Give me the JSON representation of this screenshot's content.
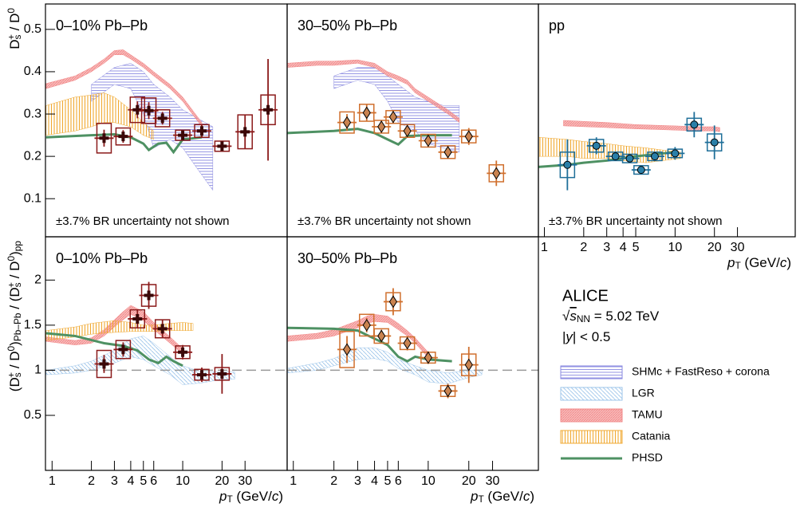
{
  "chart_data": [
    {
      "type": "scatter",
      "title": "0–10% Pb–Pb",
      "note": "±3.7% BR uncertainty not shown",
      "xscale": "log",
      "xlim": [
        0.89,
        63
      ],
      "ylim": [
        0.01,
        0.56
      ],
      "yticks": [
        0.1,
        0.2,
        0.3,
        0.4,
        0.5
      ],
      "y_label": [
        {
          "t": "D"
        },
        {
          "t": "s",
          "sub": true
        },
        {
          "t": "+",
          "sup": true
        },
        {
          "t": " / D"
        },
        {
          "t": "0",
          "sup": true
        }
      ],
      "color": "#8b1a1a",
      "marker": "cross",
      "marker_color": "#3b0808",
      "x": [
        2.5,
        3.5,
        4.5,
        5.5,
        7,
        10,
        14,
        20,
        30,
        45
      ],
      "values": [
        0.243,
        0.247,
        0.31,
        0.308,
        0.29,
        0.25,
        0.26,
        0.224,
        0.258,
        0.31
      ],
      "errors": [
        0.02,
        0.015,
        0.02,
        0.02,
        0.015,
        0.012,
        0.015,
        0.012,
        0.04,
        0.12
      ],
      "sys_errors": [
        0.035,
        0.02,
        0.03,
        0.03,
        0.02,
        0.012,
        0.015,
        0.012,
        0.04,
        0.035
      ],
      "models": {
        "SHMc + FastReso + corona": {
          "x": [
            2,
            3,
            4,
            5,
            6,
            8,
            10,
            13,
            17
          ],
          "lo": [
            0.33,
            0.37,
            0.36,
            0.3,
            0.22,
            0.24,
            0.22,
            0.17,
            0.12
          ],
          "hi": [
            0.37,
            0.41,
            0.42,
            0.4,
            0.37,
            0.34,
            0.31,
            0.29,
            0.27
          ]
        },
        "TAMU": {
          "x": [
            0.9,
            1.5,
            2,
            2.5,
            3,
            3.5,
            4,
            5,
            6,
            8,
            10,
            14
          ],
          "lo": [
            0.36,
            0.38,
            0.4,
            0.42,
            0.44,
            0.44,
            0.43,
            0.41,
            0.39,
            0.36,
            0.33,
            0.27
          ],
          "hi": [
            0.372,
            0.39,
            0.41,
            0.43,
            0.45,
            0.452,
            0.44,
            0.42,
            0.4,
            0.37,
            0.34,
            0.28
          ]
        },
        "Catania": {
          "x": [
            0.9,
            1.5,
            2,
            2.5,
            3,
            4,
            5,
            6
          ],
          "lo": [
            0.25,
            0.26,
            0.27,
            0.28,
            0.28,
            0.27,
            0.25,
            0.24
          ],
          "hi": [
            0.32,
            0.34,
            0.345,
            0.35,
            0.34,
            0.31,
            0.28,
            0.26
          ]
        },
        "PHSD": {
          "x": [
            0.9,
            2,
            3,
            4,
            5,
            5.5,
            6.5,
            7.5,
            8.5,
            10,
            14
          ],
          "values": [
            0.245,
            0.25,
            0.252,
            0.245,
            0.23,
            0.215,
            0.23,
            0.232,
            0.21,
            0.24,
            0.245
          ]
        }
      }
    },
    {
      "type": "scatter",
      "title": "30–50% Pb–Pb",
      "note": "±3.7% BR uncertainty not shown",
      "xscale": "log",
      "xlim": [
        0.9,
        65.6
      ],
      "ylim": [
        0.01,
        0.56
      ],
      "color": "#d0702e",
      "marker": "diamond",
      "marker_color": "#c98350",
      "x": [
        2.5,
        3.5,
        4.5,
        5.5,
        7,
        10,
        14,
        20,
        32
      ],
      "values": [
        0.28,
        0.303,
        0.27,
        0.293,
        0.26,
        0.237,
        0.21,
        0.247,
        0.16
      ],
      "errors": [
        0.02,
        0.02,
        0.015,
        0.015,
        0.015,
        0.015,
        0.015,
        0.02,
        0.03
      ],
      "sys_errors": [
        0.025,
        0.02,
        0.015,
        0.015,
        0.015,
        0.015,
        0.015,
        0.015,
        0.02
      ],
      "models": {
        "SHMc + FastReso + corona": {
          "x": [
            2,
            3,
            4,
            5,
            6,
            8,
            10,
            13,
            17
          ],
          "lo": [
            0.36,
            0.38,
            0.37,
            0.33,
            0.28,
            0.26,
            0.23,
            0.22,
            0.21
          ],
          "hi": [
            0.39,
            0.41,
            0.41,
            0.39,
            0.37,
            0.34,
            0.33,
            0.32,
            0.32
          ]
        },
        "TAMU": {
          "x": [
            0.9,
            1.5,
            2,
            3,
            4,
            5,
            6,
            7,
            8,
            10,
            14,
            17
          ],
          "lo": [
            0.41,
            0.415,
            0.415,
            0.42,
            0.41,
            0.39,
            0.38,
            0.37,
            0.35,
            0.33,
            0.3,
            0.28
          ],
          "hi": [
            0.42,
            0.425,
            0.425,
            0.428,
            0.42,
            0.4,
            0.39,
            0.38,
            0.36,
            0.34,
            0.31,
            0.29
          ]
        },
        "PHSD": {
          "x": [
            0.9,
            2,
            3,
            4,
            5,
            6,
            7,
            10,
            15
          ],
          "values": [
            0.255,
            0.26,
            0.265,
            0.255,
            0.24,
            0.228,
            0.248,
            0.25,
            0.25
          ]
        }
      }
    },
    {
      "type": "scatter",
      "title": "pp",
      "note": "±3.7% BR uncertainty not shown",
      "xscale": "log",
      "xlim": [
        0.9,
        83
      ],
      "ylim": [
        0.01,
        0.56
      ],
      "xticks": [
        1,
        2,
        3,
        4,
        5,
        10,
        20,
        30
      ],
      "x_label": [
        {
          "t": "p",
          "italic": true
        },
        {
          "t": "T",
          "sub": true
        },
        {
          "t": " (GeV/"
        },
        {
          "t": "c",
          "italic": true
        },
        {
          "t": ")"
        }
      ],
      "color": "#1f6f99",
      "marker": "circle",
      "marker_color": "#2a7fa8",
      "x": [
        1.5,
        2.5,
        3.5,
        4.5,
        5.5,
        7,
        10,
        14,
        20
      ],
      "values": [
        0.18,
        0.225,
        0.2,
        0.195,
        0.168,
        0.2,
        0.207,
        0.275,
        0.233
      ],
      "errors": [
        0.06,
        0.02,
        0.01,
        0.01,
        0.01,
        0.01,
        0.015,
        0.03,
        0.04
      ],
      "sys_errors": [
        0.03,
        0.015,
        0.01,
        0.01,
        0.01,
        0.01,
        0.01,
        0.015,
        0.02
      ],
      "models": {
        "TAMU": {
          "x": [
            1.4,
            3,
            5,
            8,
            10,
            15,
            20,
            22
          ],
          "lo": [
            0.272,
            0.268,
            0.265,
            0.263,
            0.262,
            0.26,
            0.26,
            0.258
          ],
          "hi": [
            0.285,
            0.28,
            0.275,
            0.273,
            0.272,
            0.27,
            0.27,
            0.268
          ]
        },
        "Catania": {
          "x": [
            0.9,
            1.5,
            2,
            3,
            4,
            6,
            8,
            11
          ],
          "lo": [
            0.2,
            0.2,
            0.195,
            0.195,
            0.19,
            0.185,
            0.19,
            0.195
          ],
          "hi": [
            0.245,
            0.24,
            0.235,
            0.23,
            0.225,
            0.22,
            0.215,
            0.21
          ]
        },
        "PHSD": {
          "x": [
            0.9,
            1.5,
            2,
            3,
            5,
            7,
            10
          ],
          "values": [
            0.175,
            0.18,
            0.185,
            0.19,
            0.2,
            0.205,
            0.21
          ]
        }
      }
    },
    {
      "type": "scatter",
      "title": "0–10% Pb–Pb",
      "xscale": "log",
      "xlim": [
        0.89,
        63
      ],
      "ylim": [
        -0.11,
        2.48
      ],
      "yticks": [
        0.5,
        1.0,
        1.5,
        2.0
      ],
      "xticks": [
        1,
        2,
        3,
        4,
        5,
        6,
        10,
        20,
        30
      ],
      "hline": 1,
      "y_label": [
        {
          "t": "(D"
        },
        {
          "t": "s",
          "sub": true
        },
        {
          "t": "+",
          "sup": true
        },
        {
          "t": " / D"
        },
        {
          "t": "0",
          "sup": true
        },
        {
          "t": ")"
        },
        {
          "t": "Pb–Pb",
          "sub": true
        },
        {
          "t": " / (D"
        },
        {
          "t": "s",
          "sub": true
        },
        {
          "t": "+",
          "sup": true
        },
        {
          "t": " / D"
        },
        {
          "t": "0",
          "sup": true
        },
        {
          "t": ")"
        },
        {
          "t": "pp",
          "sub": true
        }
      ],
      "x_label": [
        {
          "t": "p",
          "italic": true
        },
        {
          "t": "T",
          "sub": true
        },
        {
          "t": " (GeV/"
        },
        {
          "t": "c",
          "italic": true
        },
        {
          "t": ")"
        }
      ],
      "color": "#8b1a1a",
      "marker": "cross",
      "marker_color": "#3b0808",
      "x": [
        2.5,
        3.5,
        4.5,
        5.5,
        7,
        10,
        14,
        20
      ],
      "values": [
        1.07,
        1.23,
        1.57,
        1.83,
        1.46,
        1.2,
        0.95,
        0.96
      ],
      "errors": [
        0.1,
        0.08,
        0.1,
        0.15,
        0.1,
        0.08,
        0.08,
        0.22
      ],
      "sys_errors": [
        0.15,
        0.1,
        0.1,
        0.12,
        0.1,
        0.07,
        0.06,
        0.07
      ],
      "models": {
        "LGR": {
          "x": [
            0.9,
            1.5,
            2,
            3,
            4,
            5,
            6,
            8,
            10,
            14,
            20,
            25
          ],
          "lo": [
            0.95,
            0.97,
            1.0,
            1.08,
            1.15,
            1.12,
            1.05,
            0.95,
            0.84,
            0.86,
            0.9,
            0.9
          ],
          "hi": [
            1.0,
            1.05,
            1.1,
            1.22,
            1.35,
            1.38,
            1.3,
            1.15,
            1.05,
            0.98,
            0.98,
            0.98
          ]
        },
        "TAMU": {
          "x": [
            0.9,
            1.5,
            2,
            2.5,
            3,
            3.5,
            4,
            5,
            6,
            8,
            10
          ],
          "lo": [
            1.32,
            1.28,
            1.3,
            1.38,
            1.48,
            1.56,
            1.62,
            1.55,
            1.45,
            1.3,
            1.18
          ],
          "hi": [
            1.37,
            1.33,
            1.36,
            1.45,
            1.56,
            1.65,
            1.72,
            1.65,
            1.53,
            1.37,
            1.24
          ]
        },
        "Catania": {
          "x": [
            0.9,
            1.5,
            2,
            3,
            4,
            5,
            6,
            8,
            10,
            12
          ],
          "lo": [
            1.33,
            1.37,
            1.4,
            1.42,
            1.43,
            1.43,
            1.43,
            1.44,
            1.44,
            1.44
          ],
          "hi": [
            1.44,
            1.48,
            1.52,
            1.55,
            1.53,
            1.5,
            1.5,
            1.52,
            1.53,
            1.52
          ]
        },
        "PHSD": {
          "x": [
            0.9,
            1.5,
            2.5,
            3.5,
            4.5,
            5.5,
            6.5,
            7.5,
            8.5,
            10
          ],
          "values": [
            1.41,
            1.38,
            1.3,
            1.27,
            1.22,
            1.12,
            1.08,
            1.15,
            1.1,
            1.05
          ]
        }
      }
    },
    {
      "type": "scatter",
      "title": "30–50% Pb–Pb",
      "xscale": "log",
      "xlim": [
        0.9,
        65.6
      ],
      "ylim": [
        -0.11,
        2.48
      ],
      "xticks": [
        1,
        2,
        3,
        4,
        5,
        6,
        10,
        20,
        30
      ],
      "hline": 1,
      "x_label": [
        {
          "t": "p",
          "italic": true
        },
        {
          "t": "T",
          "sub": true
        },
        {
          "t": " (GeV/"
        },
        {
          "t": "c",
          "italic": true
        },
        {
          "t": ")"
        }
      ],
      "color": "#d0702e",
      "marker": "diamond",
      "marker_color": "#c98350",
      "x": [
        2.5,
        3.5,
        4.5,
        5.5,
        7,
        10,
        14,
        20
      ],
      "values": [
        1.23,
        1.5,
        1.38,
        1.76,
        1.3,
        1.14,
        0.77,
        1.06
      ],
      "errors": [
        0.15,
        0.08,
        0.07,
        0.15,
        0.08,
        0.07,
        0.08,
        0.2
      ],
      "sys_errors": [
        0.2,
        0.12,
        0.08,
        0.1,
        0.07,
        0.06,
        0.06,
        0.12
      ],
      "models": {
        "LGR": {
          "x": [
            0.9,
            1.5,
            2,
            3,
            4,
            5,
            6,
            8,
            10,
            14,
            20,
            25
          ],
          "lo": [
            0.97,
            1.0,
            1.05,
            1.12,
            1.13,
            1.1,
            1.02,
            0.95,
            0.87,
            0.85,
            0.92,
            0.95
          ],
          "hi": [
            1.02,
            1.08,
            1.13,
            1.25,
            1.25,
            1.2,
            1.12,
            1.05,
            1.0,
            0.97,
            1.0,
            1.0
          ]
        },
        "TAMU": {
          "x": [
            0.9,
            1.5,
            2,
            3,
            3.5,
            4,
            5,
            6,
            7,
            8,
            10
          ],
          "lo": [
            1.32,
            1.35,
            1.38,
            1.47,
            1.52,
            1.54,
            1.53,
            1.45,
            1.38,
            1.3,
            1.14
          ],
          "hi": [
            1.38,
            1.41,
            1.45,
            1.55,
            1.6,
            1.62,
            1.6,
            1.52,
            1.44,
            1.36,
            1.2
          ]
        },
        "PHSD": {
          "x": [
            0.9,
            2,
            3,
            4,
            5,
            6,
            7,
            8,
            10,
            15
          ],
          "values": [
            1.47,
            1.46,
            1.44,
            1.35,
            1.28,
            1.15,
            1.1,
            1.15,
            1.12,
            1.1
          ]
        }
      }
    }
  ],
  "legend": [
    {
      "name": "SHMc + FastReso + corona",
      "color": "#8a8ae0",
      "style": "horizontal"
    },
    {
      "name": "LGR",
      "color": "#9ec5ea",
      "style": "diagonal"
    },
    {
      "name": "TAMU",
      "color": "#f28a8a",
      "style": "dense"
    },
    {
      "name": "Catania",
      "color": "#f0a830",
      "style": "vertical"
    },
    {
      "name": "PHSD",
      "color": "#4e9163",
      "style": "line"
    }
  ],
  "annotation": {
    "experiment": "ALICE",
    "energy": [
      {
        "t": "√"
      },
      {
        "t": "s",
        "italic": true,
        "overline": true
      },
      {
        "t": "NN",
        "sub": true
      },
      {
        "t": " = 5.02 TeV"
      }
    ],
    "rapidity": [
      {
        "t": "|"
      },
      {
        "t": "y",
        "italic": true
      },
      {
        "t": "| < 0.5"
      }
    ]
  }
}
